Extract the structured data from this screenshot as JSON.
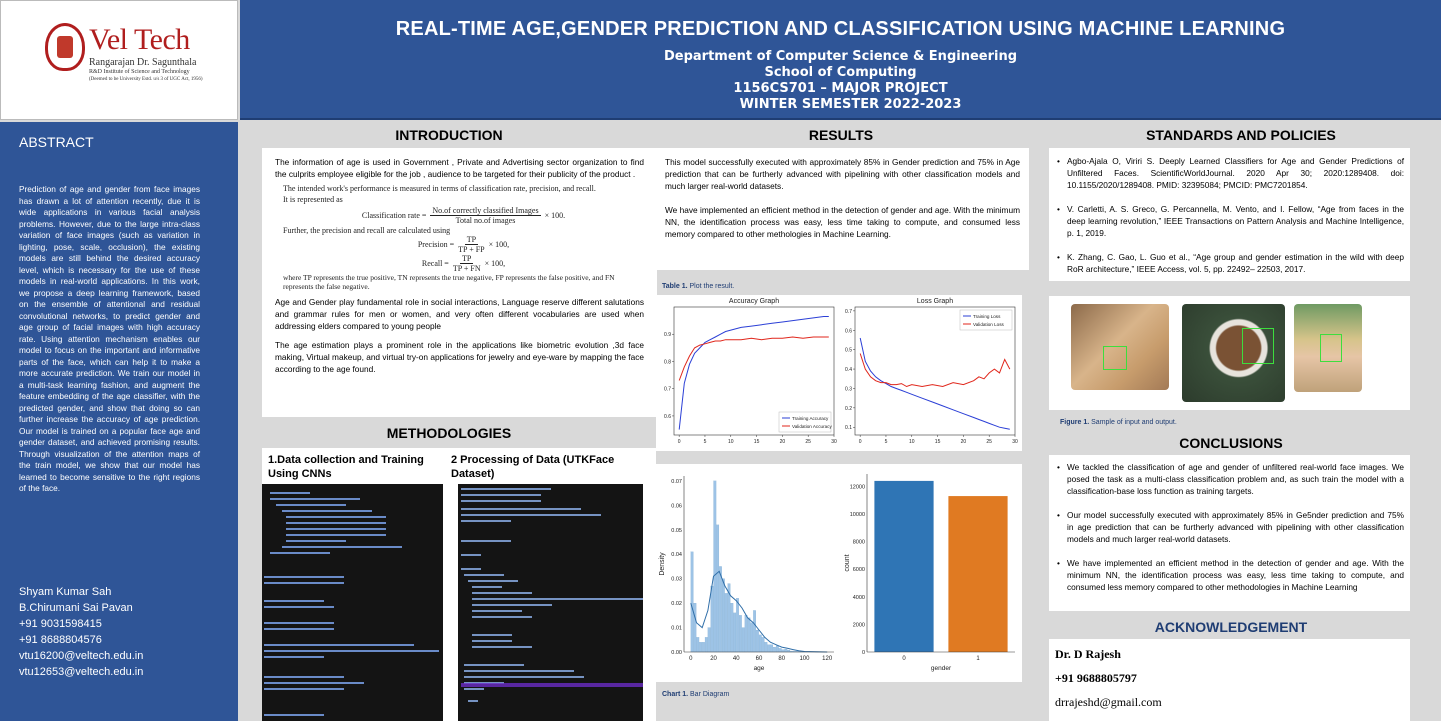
{
  "logo": {
    "name": "Vel Tech",
    "sub1": "Rangarajan Dr. Sagunthala",
    "sub2": "R&D Institute of Science and Technology",
    "sub3": "(Deemed to be University Estd. u/s 3 of UGC Act, 1956)"
  },
  "header": {
    "title": "REAL-TIME AGE,GENDER PREDICTION AND CLASSIFICATION USING MACHINE LEARNING",
    "dept": "Department of Computer Science & Engineering",
    "school": "School of Computing",
    "course": "1156CS701 – MAJOR PROJECT",
    "semester": "WINTER SEMESTER 2022-2023"
  },
  "abstract": {
    "heading": "ABSTRACT",
    "text": "Prediction of age and gender from face images has drawn a lot of attention recently, due it is wide applications in various facial analysis problems. However, due to the large intra-class variation of face images (such as variation in lighting, pose, scale, occlusion), the existing models are still behind the desired accuracy level, which is necessary for the use of these models in real-world applications. In this work, we propose a deep learning framework, based on the ensemble of attentional and residual convolutional networks, to predict gender and age group of facial images with high accuracy rate. Using attention mechanism enables our model to focus on the important and informative parts of the face, which can help it to make a more accurate prediction. We train our model in a multi-task learning fashion, and augment the feature embedding of the age classifier, with the predicted gender, and show that doing so can further increase the accuracy of age prediction. Our model is trained on a popular face age and gender dataset, and achieved promising results. Through visualization of the attention maps of the train model, we show that our model has learned to become sensitive to the right regions of the face.",
    "contacts": [
      "Shyam Kumar Sah",
      "B.Chirumani Sai Pavan",
      "+91 9031598415",
      "+91 8688804576",
      "vtu16200@veltech.edu.in",
      "vtu12653@veltech.edu.in"
    ]
  },
  "introduction": {
    "heading": "INTRODUCTION",
    "p1": "The information of age is used in Government , Private and Advertising sector organization to find the culprits employee eligible for the job , audience to be targeted for their publicity of the product .",
    "f_intro": "The intended work's performance is measured in terms of classification rate, precision, and recall.",
    "f_rep": "It is represented as",
    "f_cls_lhs": "Classification rate =",
    "f_cls_num": "No.of correctly classified Images",
    "f_cls_den": "Total no.of images",
    "f_cls_mul": "× 100.",
    "f_further": "Further, the precision and recall are calculated using",
    "f_prec_lhs": "Precision =",
    "f_prec_num": "TP",
    "f_prec_den": "TP + FP",
    "f_prec_mul": "× 100,",
    "f_rec_lhs": "Recall =",
    "f_rec_num": "TP",
    "f_rec_den": "TP + FN",
    "f_rec_mul": "× 100,",
    "f_where": "where TP represents the true positive, TN represents the true negative, FP represents the false positive, and FN represents the false negative.",
    "p2": "Age and Gender play fundamental role in social interactions, Language reserve different salutations and grammar rules for men or women, and very often different vocabularies are used when addressing elders compared to young people",
    "p3": "The age estimation plays a prominent role in the applications like biometric evolution ,3d face making, Virtual makeup, and virtual try-on applications for jewelry and eye-ware by mapping the face according to the age found."
  },
  "methodologies": {
    "heading": "METHODOLOGIES",
    "step1": "1.Data collection and Training Using CNNs",
    "step2": "2 Processing of Data (UTKFace Dataset)"
  },
  "results": {
    "heading": "RESULTS",
    "p1": "This model successfully executed with approximately 85% in Gender prediction and 75% in Age prediction that can be furtherly advanced with pipelining with other classification models and much larger real-world datasets.",
    "p2": "We have implemented an efficient method in the detection of gender and age. With the minimum NN, the identification process was easy, less time taking to compute, and consumed less memory compared to other methologies in Machine Learning.",
    "table_caption_bold": "Table 1.",
    "table_caption": "Plot the result.",
    "chart_caption_bold": "Chart 1.",
    "chart_caption": "Bar Diagram"
  },
  "chart_data": [
    {
      "type": "line",
      "title": "Accuracy Graph",
      "x": [
        0,
        1,
        2,
        3,
        4,
        5,
        6,
        7,
        8,
        9,
        10,
        12,
        14,
        16,
        18,
        20,
        22,
        24,
        26,
        28,
        29
      ],
      "series": [
        {
          "name": "Training Accuracy",
          "color": "#2b3fd6",
          "values": [
            0.55,
            0.72,
            0.79,
            0.83,
            0.85,
            0.87,
            0.88,
            0.89,
            0.9,
            0.91,
            0.915,
            0.925,
            0.93,
            0.935,
            0.94,
            0.945,
            0.95,
            0.955,
            0.96,
            0.965,
            0.965
          ]
        },
        {
          "name": "Validation Accuracy",
          "color": "#e0261b",
          "values": [
            0.73,
            0.78,
            0.82,
            0.85,
            0.86,
            0.865,
            0.87,
            0.875,
            0.875,
            0.88,
            0.88,
            0.88,
            0.885,
            0.88,
            0.885,
            0.885,
            0.89,
            0.885,
            0.89,
            0.89,
            0.89
          ]
        }
      ],
      "xticks": [
        0,
        5,
        10,
        15,
        20,
        25,
        30
      ],
      "yticks": [
        0.6,
        0.7,
        0.8,
        0.9
      ],
      "xlim": [
        -1,
        30
      ],
      "ylim": [
        0.53,
        1.0
      ],
      "legend": "bottom-right"
    },
    {
      "type": "line",
      "title": "Loss Graph",
      "x": [
        0,
        1,
        2,
        3,
        4,
        5,
        6,
        7,
        8,
        9,
        10,
        12,
        14,
        16,
        18,
        20,
        22,
        23,
        24,
        25,
        26,
        27,
        28,
        29
      ],
      "series": [
        {
          "name": "Training Loss",
          "color": "#2b3fd6",
          "values": [
            0.56,
            0.44,
            0.39,
            0.36,
            0.34,
            0.325,
            0.31,
            0.3,
            0.29,
            0.28,
            0.27,
            0.25,
            0.23,
            0.21,
            0.19,
            0.17,
            0.15,
            0.14,
            0.13,
            0.12,
            0.11,
            0.1,
            0.095,
            0.09
          ]
        },
        {
          "name": "Validation Loss",
          "color": "#e0261b",
          "values": [
            0.48,
            0.4,
            0.36,
            0.34,
            0.33,
            0.33,
            0.32,
            0.32,
            0.325,
            0.31,
            0.32,
            0.31,
            0.32,
            0.31,
            0.33,
            0.32,
            0.34,
            0.36,
            0.35,
            0.38,
            0.4,
            0.38,
            0.45,
            0.4
          ]
        }
      ],
      "xticks": [
        0,
        5,
        10,
        15,
        20,
        25,
        30
      ],
      "yticks": [
        0.1,
        0.2,
        0.3,
        0.4,
        0.5,
        0.6,
        0.7
      ],
      "xlim": [
        -1,
        30
      ],
      "ylim": [
        0.06,
        0.72
      ],
      "legend": "top-right"
    },
    {
      "type": "bar",
      "title": "",
      "xlabel": "age",
      "ylabel": "Density",
      "bins_start": 0,
      "bin_width": 2.5,
      "values": [
        0.041,
        0.02,
        0.006,
        0.004,
        0.004,
        0.006,
        0.01,
        0.027,
        0.07,
        0.052,
        0.035,
        0.03,
        0.024,
        0.028,
        0.02,
        0.016,
        0.022,
        0.015,
        0.01,
        0.015,
        0.014,
        0.012,
        0.017,
        0.009,
        0.007,
        0.006,
        0.004,
        0.003,
        0.003,
        0.002,
        0.0025,
        0.0015,
        0.001,
        0.0012,
        0.0008,
        0.0004,
        0.0003,
        0.0003,
        0.0002,
        0.0002,
        0.0001,
        0,
        0,
        0,
        0.0001,
        0,
        0.0001,
        0.0001
      ],
      "kde_x": [
        0,
        5,
        10,
        15,
        20,
        25,
        30,
        35,
        40,
        45,
        50,
        55,
        60,
        65,
        70,
        75,
        80,
        85,
        90,
        95,
        100,
        110,
        120
      ],
      "kde_y": [
        0.02,
        0.012,
        0.01,
        0.017,
        0.031,
        0.033,
        0.027,
        0.023,
        0.021,
        0.018,
        0.014,
        0.012,
        0.009,
        0.006,
        0.004,
        0.003,
        0.002,
        0.0015,
        0.001,
        0.0005,
        0.0002,
        0.0001,
        0
      ],
      "xticks": [
        0,
        20,
        40,
        60,
        80,
        100,
        120
      ],
      "yticks": [
        0.0,
        0.01,
        0.02,
        0.03,
        0.04,
        0.05,
        0.06,
        0.07
      ],
      "xlim": [
        -6,
        126
      ],
      "ylim": [
        0,
        0.072
      ]
    },
    {
      "type": "bar",
      "title": "",
      "xlabel": "gender",
      "ylabel": "count",
      "categories": [
        "0",
        "1"
      ],
      "values": [
        12400,
        11300
      ],
      "colors": [
        "#2f75b5",
        "#e07a22"
      ],
      "yticks": [
        0,
        2000,
        4000,
        6000,
        8000,
        10000,
        12000
      ],
      "ylim": [
        0,
        12900
      ]
    }
  ],
  "standards": {
    "heading": "STANDARDS AND POLICIES",
    "items": [
      "Agbo-Ajala O, Viriri S. Deeply Learned Classifiers for Age and Gender Predictions of Unfiltered Faces. ScientificWorldJournal. 2020 Apr 30; 2020:1289408. doi: 10.1155/2020/1289408. PMID: 32395084; PMCID: PMC7201854.",
      "V. Carletti, A. S. Greco, G. Percannella, M. Vento, and I. Fellow, “Age from faces in the deep learning revolution,” IEEE Transactions on Pattern Analysis and Machine Intelligence, p. 1, 2019.",
      "K. Zhang, C. Gao, L. Guo et al., “Age group and gender estimation in the wild with deep RoR architecture,” IEEE Access, vol. 5, pp. 22492– 22503, 2017."
    ],
    "fig_caption_bold": "Figure 1.",
    "fig_caption": "Sample of input and output."
  },
  "conclusions": {
    "heading": "CONCLUSIONS",
    "items": [
      "We tackled the classification of age and gender of unfiltered real-world face images. We posed the task as a multi-class classification problem and, as such train the model with a classification-base loss function as training targets.",
      "Our model successfully executed with approximately 85% in Ge5nder prediction and 75% in age prediction that can be furtherly advanced with pipelining with other classification models and much larger real-world datasets.",
      "We have implemented an efficient method in the detection of gender and age. With the minimum NN, the identification process was easy, less time taking to compute, and consumed less memory compared to other methodologies in Machine Learning"
    ]
  },
  "acknowledgement": {
    "heading": "ACKNOWLEDGEMENT",
    "name": "Dr. D Rajesh",
    "phone": "+91 9688805797",
    "email": "drrajeshd@gmail.com"
  },
  "colors": {
    "primary": "#2f5597",
    "heading_blue": "#1f3d73",
    "background": "#d9d9d9"
  }
}
